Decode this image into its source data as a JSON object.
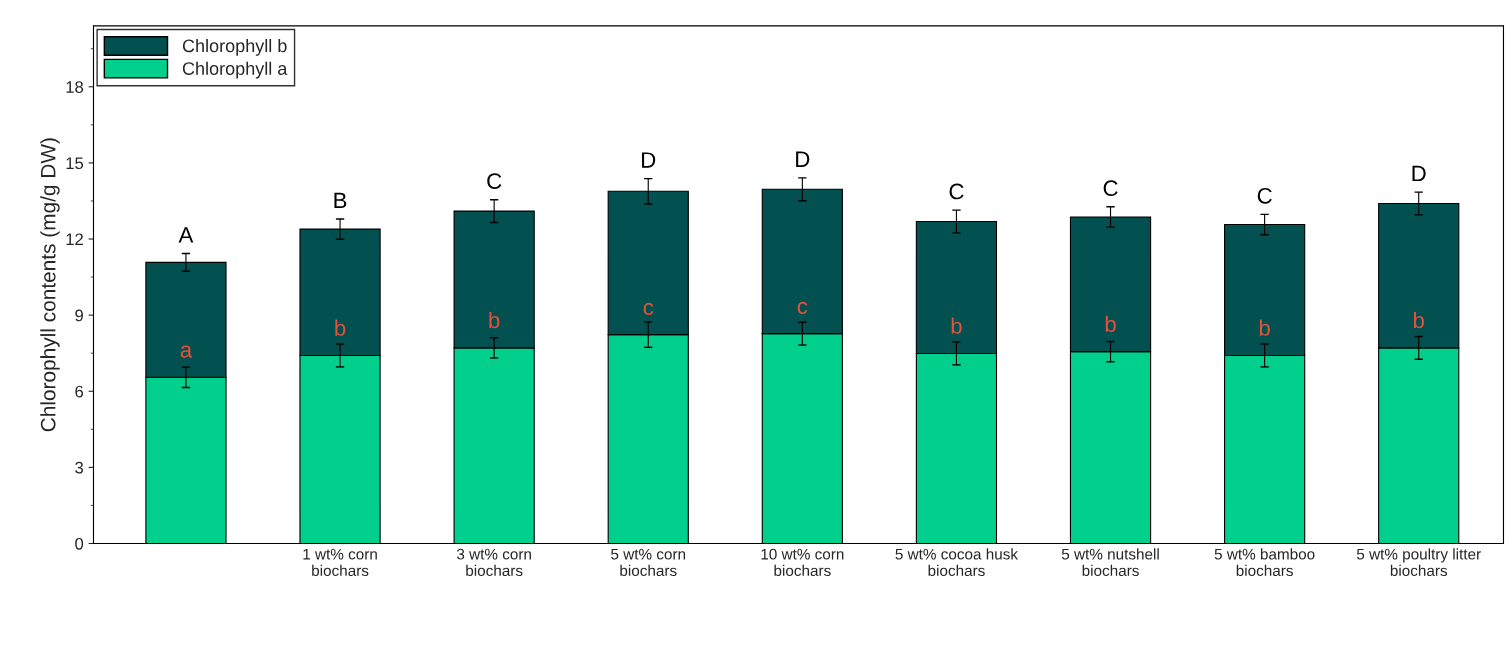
{
  "chart_data": {
    "type": "bar",
    "stacked": true,
    "ylabel": "Chlorophyll contents (mg/g DW)",
    "categories": [
      null,
      "1 wt% corn\nbiochars",
      "3 wt% corn\nbiochars",
      "5 wt% corn\nbiochars",
      "10 wt% corn\nbiochars",
      "5 wt% cocoa husk\nbiochars",
      "5 wt% nutshell\nbiochars",
      "5 wt% bamboo\nbiochars",
      "5 wt% poultry litter\nbiochars"
    ],
    "series": [
      {
        "name": "Chlorophyll a",
        "color": "#00d08c",
        "values": [
          6.55,
          7.41,
          7.71,
          8.23,
          8.27,
          7.49,
          7.56,
          7.41,
          7.71
        ],
        "errors": [
          0.4,
          0.45,
          0.4,
          0.5,
          0.45,
          0.45,
          0.4,
          0.45,
          0.45
        ]
      },
      {
        "name": "Chlorophyll b",
        "color": "#02504f",
        "values": [
          4.53,
          4.98,
          5.39,
          5.65,
          5.69,
          5.2,
          5.31,
          5.16,
          5.69
        ],
        "errors": [
          0.35,
          0.4,
          0.45,
          0.5,
          0.45,
          0.45,
          0.4,
          0.4,
          0.45
        ]
      }
    ],
    "annotations": [
      "A",
      "B",
      "C",
      "D",
      "D",
      "C",
      "C",
      "C",
      "D",
      "a",
      "b",
      "b",
      "c",
      "c",
      "b",
      "b",
      "b",
      "b"
    ],
    "ylim": [
      0,
      20.4
    ],
    "yticks": [
      0,
      3,
      6,
      9,
      12,
      15,
      18
    ],
    "legend": "top left",
    "grid": false
  }
}
